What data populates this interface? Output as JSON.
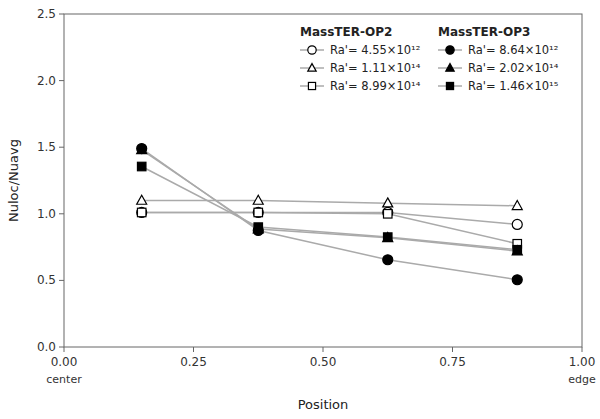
{
  "chart_data": {
    "type": "line",
    "x": [
      0.15,
      0.375,
      0.625,
      0.875
    ],
    "series": [
      {
        "name": "Ra'= 4.55×10¹²",
        "group": "MassTER-OP2",
        "marker": "open-circle",
        "color": "#aaaaaa",
        "values": [
          1.01,
          1.01,
          1.01,
          0.92
        ]
      },
      {
        "name": "Ra'= 1.11×10¹⁴",
        "group": "MassTER-OP2",
        "marker": "open-triangle",
        "color": "#aaaaaa",
        "values": [
          1.1,
          1.1,
          1.08,
          1.06
        ]
      },
      {
        "name": "Ra'= 8.99×10¹⁴",
        "group": "MassTER-OP2",
        "marker": "open-square",
        "color": "#aaaaaa",
        "values": [
          1.01,
          1.01,
          1.0,
          0.775
        ]
      },
      {
        "name": "Ra'= 8.64×10¹²",
        "group": "MassTER-OP3",
        "marker": "circle",
        "color": "#aaaaaa",
        "values": [
          1.49,
          0.875,
          0.655,
          0.505
        ]
      },
      {
        "name": "Ra'= 2.02×10¹⁴",
        "group": "MassTER-OP3",
        "marker": "triangle",
        "color": "#aaaaaa",
        "values": [
          1.48,
          0.885,
          0.82,
          0.72
        ]
      },
      {
        "name": "Ra'= 1.46×10¹⁵",
        "group": "MassTER-OP3",
        "marker": "square",
        "color": "#aaaaaa",
        "values": [
          1.355,
          0.9,
          0.825,
          0.73
        ]
      }
    ],
    "x_label": "Position",
    "y_label": "Nuloc/Nuavg",
    "xlim": [
      0.0,
      1.0
    ],
    "ylim": [
      0.0,
      2.5
    ],
    "xticks": [
      {
        "value": 0.0,
        "label": "0.00"
      },
      {
        "value": 0.25,
        "label": "0.25"
      },
      {
        "value": 0.5,
        "label": "0.50"
      },
      {
        "value": 0.75,
        "label": "0.75"
      },
      {
        "value": 1.0,
        "label": "1.00"
      }
    ],
    "yticks": [
      {
        "value": 0.0,
        "label": "0.0"
      },
      0.5,
      {
        "value": 1.0,
        "label": "1.0"
      },
      1.5,
      {
        "value": 2.0,
        "label": "2.0"
      },
      2.5
    ],
    "annotations": [
      {
        "text": "center",
        "x": 0.0
      },
      {
        "text": "edge",
        "x": 1.0
      }
    ],
    "legend": "upper right",
    "grid": false
  }
}
